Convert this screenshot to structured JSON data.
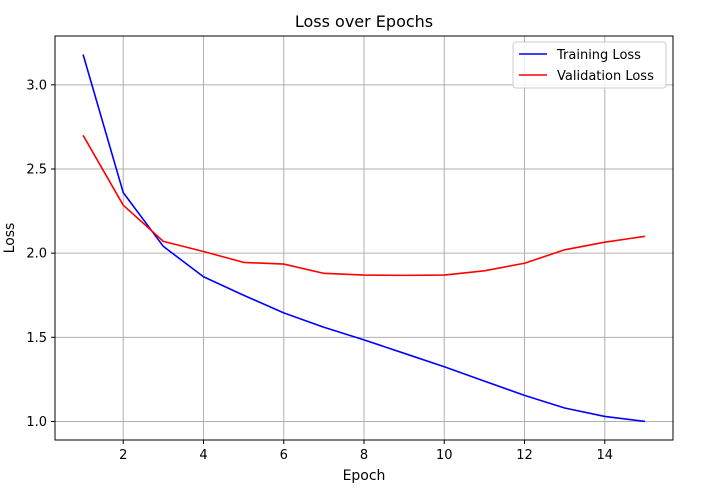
{
  "chart_data": {
    "type": "line",
    "title": "Loss over Epochs",
    "xlabel": "Epoch",
    "ylabel": "Loss",
    "xlim": [
      0.3,
      15.7
    ],
    "ylim": [
      0.89,
      3.29
    ],
    "xticks": [
      2,
      4,
      6,
      8,
      10,
      12,
      14
    ],
    "yticks": [
      1.0,
      1.5,
      2.0,
      2.5,
      3.0
    ],
    "grid": true,
    "legend_position": "top-right",
    "x": [
      1,
      2,
      3,
      4,
      5,
      6,
      7,
      8,
      9,
      10,
      11,
      12,
      13,
      14,
      15
    ],
    "series": [
      {
        "name": "Training Loss",
        "color": "#0000ff",
        "values": [
          3.18,
          2.36,
          2.04,
          1.86,
          1.75,
          1.645,
          1.56,
          1.485,
          1.405,
          1.325,
          1.24,
          1.155,
          1.08,
          1.03,
          1.0
        ]
      },
      {
        "name": "Validation Loss",
        "color": "#ff0000",
        "values": [
          2.7,
          2.285,
          2.07,
          2.01,
          1.945,
          1.935,
          1.88,
          1.87,
          1.868,
          1.87,
          1.895,
          1.94,
          2.02,
          2.065,
          2.1
        ]
      }
    ]
  }
}
